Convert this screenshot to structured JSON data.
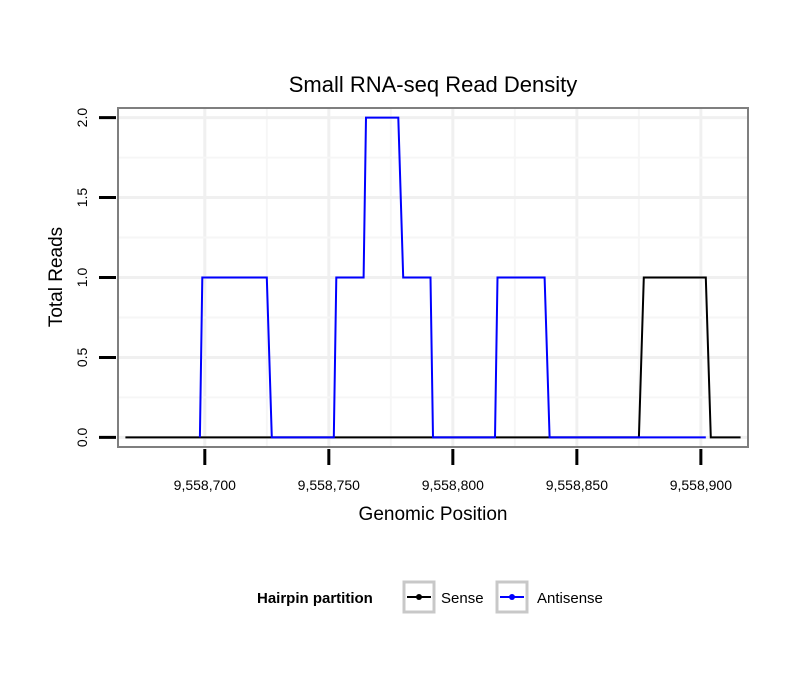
{
  "chart_data": {
    "type": "line",
    "title": "Small RNA-seq Read Density",
    "xlabel": "Genomic Position",
    "ylabel": "Total Reads",
    "xlim": [
      9558665,
      9558919
    ],
    "ylim": [
      -0.06,
      2.06
    ],
    "x_ticks": [
      9558700,
      9558750,
      9558800,
      9558850,
      9558900
    ],
    "x_tick_labels": [
      "9,558,700",
      "9,558,750",
      "9,558,800",
      "9,558,850",
      "9,558,900"
    ],
    "y_ticks": [
      0,
      0.5,
      1,
      1.5,
      2
    ],
    "y_tick_labels": [
      "0.0",
      "0.5",
      "1.0",
      "1.5",
      "2.0"
    ],
    "grid": true,
    "legend": {
      "title": "Hairpin partition",
      "position": "bottom",
      "entries": [
        {
          "name": "Sense",
          "color": "#000000"
        },
        {
          "name": "Antisense",
          "color": "#0000ff"
        }
      ]
    },
    "series": [
      {
        "name": "Sense",
        "color": "#000000",
        "x": [
          9558668,
          9558875,
          9558877,
          9558902,
          9558904,
          9558916
        ],
        "y": [
          0,
          0,
          1,
          1,
          0,
          0
        ]
      },
      {
        "name": "Antisense",
        "color": "#0000ff",
        "x": [
          9558698,
          9558699,
          9558725,
          9558727,
          9558752,
          9558753,
          9558764,
          9558765,
          9558778,
          9558780,
          9558791,
          9558792,
          9558817,
          9558818,
          9558837,
          9558839,
          9558875,
          9558877,
          9558902
        ],
        "y": [
          0,
          1,
          1,
          0,
          0,
          1,
          1,
          2,
          2,
          1,
          1,
          0,
          0,
          1,
          1,
          0,
          0,
          0,
          0
        ]
      }
    ]
  }
}
